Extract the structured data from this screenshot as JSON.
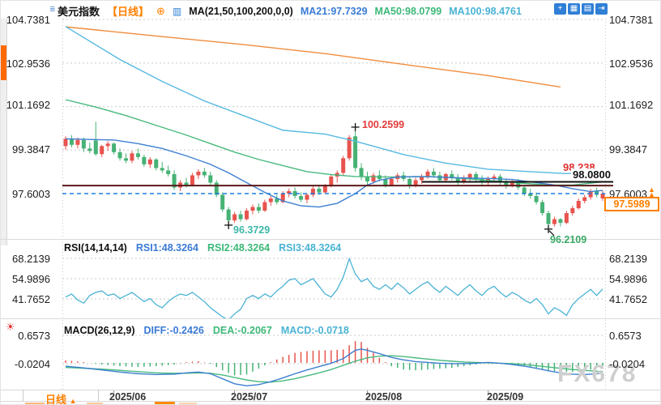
{
  "header": {
    "symbol": "美元指数",
    "period_tag": "【日线】",
    "plus_icon": "⊕",
    "kline_icon": "▥",
    "ma_params": "MA(21,50,100,200,0,0)",
    "ma21_label": "MA21:97.7329",
    "ma50_label": "MA50:98.0799",
    "ma100_label": "MA100:98.4761",
    "menu_icon": "≣"
  },
  "toolbar": {
    "icons": [
      {
        "name": "crosshair",
        "glyph": "+"
      },
      {
        "name": "indicator-window",
        "glyph": "▦"
      },
      {
        "name": "chart-style",
        "glyph": "▤"
      },
      {
        "name": "exit-fullscreen",
        "glyph": "⇥"
      }
    ]
  },
  "axes": {
    "price": [
      "104.7381",
      "102.9536",
      "101.1692",
      "99.3847",
      "97.6003"
    ],
    "rsi": [
      "68.2139",
      "54.9896",
      "41.7652"
    ],
    "macd": [
      "0.6573",
      "-0.0204"
    ],
    "dates": [
      "2025/06",
      "2025/07",
      "2025/08",
      "2025/09"
    ]
  },
  "rsi_header": {
    "name": "RSI(14,14,14)",
    "rsi1": "RSI1:48.3264",
    "rsi2": "RSI2:48.3264",
    "rsi3": "RSI3:48.3264"
  },
  "macd_header": {
    "name": "MACD(26,12,9)",
    "diff": "DIFF:-0.2426",
    "dea": "DEA:-0.2067",
    "macd": "MACD:-0.0718"
  },
  "annotations": {
    "peak_high": "100.2599",
    "june_low": "96.3729",
    "sept_low": "96.2109",
    "resistance_label": "98.238",
    "support_label": "98.0800",
    "last_tick": "97.6003",
    "current_price": "97.5989"
  },
  "bottom": {
    "period_label": "日线",
    "period_arrow": "▲",
    "watermark": "FX678",
    "macd_settings_icon": "☀"
  },
  "chart_data": {
    "type": "candlestick",
    "title": "美元指数 日线 (US Dollar Index, Daily)",
    "price_axis": {
      "ticks": [
        104.7381,
        102.9536,
        101.1692,
        99.3847,
        97.6003
      ]
    },
    "x_axis": {
      "labels": [
        "2025/06",
        "2025/07",
        "2025/08",
        "2025/09"
      ],
      "tick_indices": [
        8,
        28,
        50,
        70
      ]
    },
    "levels": {
      "dashed_support": 97.6003,
      "black_line": 98.08,
      "maroon_line": 97.93,
      "resistance_text": 98.238,
      "current_price": 97.5989
    },
    "markers": [
      {
        "index": 48,
        "price": 100.2599,
        "type": "high"
      },
      {
        "index": 27,
        "price": 96.3729,
        "type": "low"
      },
      {
        "index": 80,
        "price": 96.2109,
        "type": "low"
      }
    ],
    "candles": [
      [
        99.55,
        99.95,
        99.4,
        99.85
      ],
      [
        99.85,
        100.0,
        99.5,
        99.6
      ],
      [
        99.6,
        99.9,
        99.45,
        99.8
      ],
      [
        99.8,
        99.9,
        99.3,
        99.45
      ],
      [
        99.45,
        99.7,
        99.25,
        99.35
      ],
      [
        99.78,
        100.54,
        99.15,
        99.22
      ],
      [
        99.22,
        99.6,
        99.1,
        99.55
      ],
      [
        99.55,
        99.75,
        99.35,
        99.65
      ],
      [
        99.65,
        99.7,
        99.2,
        99.3
      ],
      [
        99.3,
        99.45,
        98.95,
        99.05
      ],
      [
        99.05,
        99.25,
        98.85,
        98.95
      ],
      [
        98.95,
        99.35,
        98.85,
        99.25
      ],
      [
        99.25,
        99.45,
        99.0,
        99.1
      ],
      [
        99.1,
        99.2,
        98.7,
        98.8
      ],
      [
        98.8,
        99.1,
        98.65,
        99.0
      ],
      [
        99.0,
        99.05,
        98.55,
        98.65
      ],
      [
        98.65,
        98.9,
        98.45,
        98.55
      ],
      [
        98.55,
        98.75,
        98.3,
        98.4
      ],
      [
        98.4,
        98.55,
        97.75,
        97.85
      ],
      [
        97.85,
        98.15,
        97.7,
        98.05
      ],
      [
        98.05,
        98.25,
        97.85,
        97.95
      ],
      [
        97.95,
        98.45,
        97.9,
        98.35
      ],
      [
        98.35,
        98.6,
        98.2,
        98.5
      ],
      [
        98.5,
        98.65,
        98.25,
        98.35
      ],
      [
        98.35,
        98.5,
        97.95,
        98.05
      ],
      [
        98.05,
        98.15,
        97.45,
        97.55
      ],
      [
        97.55,
        97.65,
        96.85,
        96.95
      ],
      [
        96.95,
        97.05,
        96.3729,
        96.5
      ],
      [
        96.5,
        96.85,
        96.4,
        96.75
      ],
      [
        96.75,
        96.9,
        96.45,
        96.55
      ],
      [
        96.55,
        97.0,
        96.5,
        96.9
      ],
      [
        96.9,
        97.15,
        96.75,
        97.05
      ],
      [
        97.05,
        97.2,
        96.8,
        96.9
      ],
      [
        96.9,
        97.35,
        96.85,
        97.25
      ],
      [
        97.25,
        97.5,
        97.1,
        97.4
      ],
      [
        97.4,
        97.55,
        97.15,
        97.25
      ],
      [
        97.25,
        97.7,
        97.2,
        97.6
      ],
      [
        97.6,
        97.8,
        97.45,
        97.7
      ],
      [
        97.7,
        97.85,
        97.4,
        97.5
      ],
      [
        97.5,
        97.65,
        97.25,
        97.35
      ],
      [
        97.35,
        97.6,
        97.2,
        97.55
      ],
      [
        97.55,
        97.9,
        97.45,
        97.8
      ],
      [
        97.8,
        97.95,
        97.55,
        97.65
      ],
      [
        97.65,
        98.0,
        97.6,
        97.9
      ],
      [
        97.9,
        98.4,
        97.85,
        98.3
      ],
      [
        98.3,
        98.55,
        98.05,
        98.45
      ],
      [
        98.45,
        99.15,
        98.35,
        99.05
      ],
      [
        99.05,
        100.0,
        98.95,
        99.9
      ],
      [
        99.95,
        100.2599,
        98.5,
        98.65
      ],
      [
        98.65,
        98.85,
        98.15,
        98.3
      ],
      [
        98.3,
        98.5,
        97.95,
        98.1
      ],
      [
        98.1,
        98.45,
        98.0,
        98.35
      ],
      [
        98.35,
        98.55,
        98.1,
        98.2
      ],
      [
        98.2,
        98.35,
        97.85,
        97.95
      ],
      [
        97.95,
        98.3,
        97.9,
        98.2
      ],
      [
        98.2,
        98.45,
        98.05,
        98.35
      ],
      [
        98.35,
        98.5,
        98.1,
        98.2
      ],
      [
        98.2,
        98.3,
        97.8,
        97.9
      ],
      [
        97.9,
        98.25,
        97.85,
        98.15
      ],
      [
        98.15,
        98.4,
        98.0,
        98.3
      ],
      [
        98.3,
        98.6,
        98.2,
        98.5
      ],
      [
        98.5,
        98.65,
        98.25,
        98.35
      ],
      [
        98.35,
        98.5,
        98.05,
        98.15
      ],
      [
        98.15,
        98.45,
        98.1,
        98.4
      ],
      [
        98.4,
        98.55,
        98.15,
        98.25
      ],
      [
        98.25,
        98.4,
        97.95,
        98.05
      ],
      [
        98.05,
        98.35,
        98.0,
        98.25
      ],
      [
        98.25,
        98.45,
        98.1,
        98.4
      ],
      [
        98.4,
        98.5,
        98.1,
        98.2
      ],
      [
        98.2,
        98.35,
        97.95,
        98.05
      ],
      [
        98.05,
        98.3,
        97.95,
        98.2
      ],
      [
        98.2,
        98.4,
        98.05,
        98.3
      ],
      [
        98.3,
        98.4,
        97.95,
        98.05
      ],
      [
        98.05,
        98.2,
        97.8,
        97.9
      ],
      [
        97.9,
        98.15,
        97.85,
        98.1
      ],
      [
        98.1,
        98.2,
        97.75,
        97.85
      ],
      [
        97.85,
        97.95,
        97.5,
        97.6
      ],
      [
        97.6,
        97.8,
        97.4,
        97.5
      ],
      [
        97.5,
        97.65,
        97.15,
        97.25
      ],
      [
        97.25,
        97.35,
        96.7,
        96.8
      ],
      [
        96.8,
        96.9,
        96.2109,
        96.35
      ],
      [
        96.35,
        96.65,
        96.25,
        96.55
      ],
      [
        96.55,
        96.6,
        96.25,
        96.4
      ],
      [
        96.4,
        96.9,
        96.35,
        96.8
      ],
      [
        96.8,
        97.1,
        96.7,
        97.0
      ],
      [
        97.0,
        97.4,
        96.95,
        97.3
      ],
      [
        97.3,
        97.55,
        97.2,
        97.45
      ],
      [
        97.45,
        97.8,
        97.35,
        97.7
      ],
      [
        97.7,
        97.85,
        97.45,
        97.55
      ],
      [
        97.4,
        97.72,
        97.3,
        97.5989
      ]
    ],
    "ma_lines": {
      "ma21": {
        "current": 97.7329,
        "points": [
          [
            0,
            99.85
          ],
          [
            4,
            99.82
          ],
          [
            8,
            99.8
          ],
          [
            12,
            99.65
          ],
          [
            16,
            99.45
          ],
          [
            20,
            99.15
          ],
          [
            24,
            98.8
          ],
          [
            27,
            98.45
          ],
          [
            30,
            98.05
          ],
          [
            33,
            97.65
          ],
          [
            36,
            97.3
          ],
          [
            39,
            97.1
          ],
          [
            42,
            97.05
          ],
          [
            45,
            97.2
          ],
          [
            48,
            97.6
          ],
          [
            50,
            97.95
          ],
          [
            52,
            98.15
          ],
          [
            55,
            98.28
          ],
          [
            58,
            98.3
          ],
          [
            62,
            98.28
          ],
          [
            66,
            98.24
          ],
          [
            70,
            98.22
          ],
          [
            74,
            98.18
          ],
          [
            78,
            98.05
          ],
          [
            81,
            97.95
          ],
          [
            84,
            97.8
          ],
          [
            87,
            97.68
          ],
          [
            89,
            97.7329
          ]
        ]
      },
      "ma50": {
        "current": 98.0799,
        "points": [
          [
            0,
            101.45
          ],
          [
            5,
            101.15
          ],
          [
            10,
            100.8
          ],
          [
            15,
            100.4
          ],
          [
            20,
            100.0
          ],
          [
            24,
            99.65
          ],
          [
            28,
            99.3
          ],
          [
            32,
            99.0
          ],
          [
            36,
            98.75
          ],
          [
            40,
            98.5
          ],
          [
            44,
            98.38
          ],
          [
            48,
            98.3
          ],
          [
            54,
            98.28
          ],
          [
            60,
            98.3
          ],
          [
            64,
            98.25
          ],
          [
            68,
            98.18
          ],
          [
            72,
            98.1
          ],
          [
            76,
            98.02
          ],
          [
            80,
            97.95
          ],
          [
            84,
            97.95
          ],
          [
            89,
            98.0799
          ]
        ]
      },
      "ma100": {
        "current": 98.4761,
        "points": [
          [
            0,
            104.45
          ],
          [
            9,
            103.1
          ],
          [
            16,
            102.2
          ],
          [
            23,
            101.4
          ],
          [
            30,
            100.75
          ],
          [
            36,
            100.2
          ],
          [
            43,
            100.04
          ],
          [
            48,
            99.75
          ],
          [
            56,
            99.2
          ],
          [
            63,
            98.85
          ],
          [
            70,
            98.6
          ],
          [
            77,
            98.5
          ],
          [
            83,
            98.42
          ],
          [
            89,
            98.4761
          ]
        ]
      },
      "ma200": {
        "points": [
          [
            0,
            104.44
          ],
          [
            16,
            104.04
          ],
          [
            30,
            103.7
          ],
          [
            43,
            103.34
          ],
          [
            56,
            102.9
          ],
          [
            70,
            102.44
          ],
          [
            82,
            101.97
          ]
        ]
      }
    },
    "rsi": {
      "ticks": [
        68.2139,
        54.9896,
        41.7652
      ],
      "values": [
        43,
        45,
        41,
        39,
        44,
        46,
        47,
        44,
        45,
        42,
        44,
        46,
        43,
        40,
        42,
        38,
        36,
        40,
        43,
        45,
        44,
        46,
        43,
        40,
        36,
        33,
        30,
        28,
        32,
        35,
        42,
        44,
        42,
        45,
        43,
        47,
        50,
        54,
        55,
        51,
        53,
        55,
        50,
        45,
        43,
        48,
        56,
        68,
        58,
        53,
        55,
        50,
        48,
        51,
        48,
        52,
        49,
        45,
        48,
        51,
        53,
        49,
        46,
        50,
        47,
        44,
        48,
        51,
        47,
        44,
        48,
        50,
        46,
        43,
        46,
        44,
        41,
        39,
        42,
        38,
        32,
        36,
        34,
        31,
        38,
        42,
        45,
        48,
        44,
        48.3
      ]
    },
    "macd": {
      "ticks": [
        0.6573,
        -0.0204
      ],
      "histogram_formula": "2*(DIFF-DEA)",
      "diff_points": [
        [
          0,
          -0.08
        ],
        [
          3,
          -0.12
        ],
        [
          6,
          -0.17
        ],
        [
          9,
          -0.22
        ],
        [
          12,
          -0.26
        ],
        [
          15,
          -0.28
        ],
        [
          18,
          -0.27
        ],
        [
          20,
          -0.24
        ],
        [
          22,
          -0.22
        ],
        [
          24,
          -0.26
        ],
        [
          26,
          -0.38
        ],
        [
          28,
          -0.5
        ],
        [
          30,
          -0.55
        ],
        [
          32,
          -0.52
        ],
        [
          34,
          -0.45
        ],
        [
          36,
          -0.36
        ],
        [
          38,
          -0.26
        ],
        [
          40,
          -0.17
        ],
        [
          42,
          -0.09
        ],
        [
          44,
          -0.01
        ],
        [
          46,
          0.1
        ],
        [
          48,
          0.3
        ],
        [
          49,
          0.33
        ],
        [
          50,
          0.3
        ],
        [
          52,
          0.22
        ],
        [
          54,
          0.13
        ],
        [
          56,
          0.07
        ],
        [
          58,
          0.03
        ],
        [
          60,
          0.01
        ],
        [
          62,
          -0.01
        ],
        [
          64,
          -0.02
        ],
        [
          66,
          -0.02
        ],
        [
          68,
          -0.01
        ],
        [
          70,
          0.01
        ],
        [
          72,
          -0.01
        ],
        [
          74,
          -0.04
        ],
        [
          76,
          -0.08
        ],
        [
          78,
          -0.13
        ],
        [
          80,
          -0.19
        ],
        [
          82,
          -0.24
        ],
        [
          84,
          -0.27
        ],
        [
          86,
          -0.28
        ],
        [
          88,
          -0.26
        ],
        [
          89,
          -0.2426
        ]
      ],
      "dea_points": [
        [
          0,
          -0.11
        ],
        [
          3,
          -0.13
        ],
        [
          6,
          -0.15
        ],
        [
          9,
          -0.18
        ],
        [
          12,
          -0.21
        ],
        [
          15,
          -0.24
        ],
        [
          18,
          -0.25
        ],
        [
          20,
          -0.25
        ],
        [
          22,
          -0.24
        ],
        [
          24,
          -0.25
        ],
        [
          26,
          -0.29
        ],
        [
          28,
          -0.35
        ],
        [
          30,
          -0.41
        ],
        [
          32,
          -0.45
        ],
        [
          34,
          -0.46
        ],
        [
          36,
          -0.43
        ],
        [
          38,
          -0.38
        ],
        [
          40,
          -0.31
        ],
        [
          42,
          -0.24
        ],
        [
          44,
          -0.16
        ],
        [
          46,
          -0.06
        ],
        [
          48,
          0.04
        ],
        [
          50,
          0.12
        ],
        [
          52,
          0.16
        ],
        [
          54,
          0.17
        ],
        [
          56,
          0.15
        ],
        [
          58,
          0.12
        ],
        [
          60,
          0.09
        ],
        [
          62,
          0.06
        ],
        [
          64,
          0.04
        ],
        [
          66,
          0.02
        ],
        [
          68,
          0.01
        ],
        [
          70,
          0.0
        ],
        [
          72,
          -0.01
        ],
        [
          74,
          -0.02
        ],
        [
          76,
          -0.04
        ],
        [
          78,
          -0.07
        ],
        [
          80,
          -0.1
        ],
        [
          82,
          -0.13
        ],
        [
          84,
          -0.16
        ],
        [
          86,
          -0.18
        ],
        [
          88,
          -0.2
        ],
        [
          89,
          -0.2067
        ]
      ]
    },
    "colors": {
      "up": "#e8534e",
      "down": "#46b275",
      "ma21": "#3d7fd0",
      "ma50": "#47b97e",
      "ma100": "#55b9e0",
      "ma200": "#f08c3c",
      "rsi_line": "#4ab3d4",
      "diff": "#3d7fd0",
      "dea": "#47b97e",
      "dashed_level": "#1f7de0",
      "maroon": "#5c1a1a",
      "black_line": "#111111",
      "grid": "#c9c9c9",
      "accent": "#ff8000"
    }
  }
}
